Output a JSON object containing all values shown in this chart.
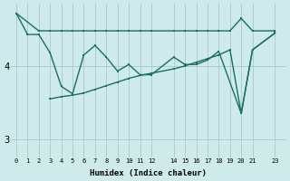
{
  "xlabel": "Humidex (Indice chaleur)",
  "background_color": "#ceeaea",
  "grid_color": "#aecece",
  "line_color": "#1a6e64",
  "x_ticks": [
    0,
    1,
    2,
    3,
    4,
    5,
    6,
    7,
    8,
    9,
    10,
    11,
    12,
    14,
    15,
    16,
    17,
    18,
    19,
    20,
    21,
    23
  ],
  "ylim": [
    2.75,
    4.85
  ],
  "yticks": [
    3,
    4
  ],
  "line1_x": [
    0,
    2,
    3,
    4,
    5,
    6,
    7,
    8,
    9,
    10,
    11,
    12,
    14,
    15,
    16,
    17,
    18,
    19,
    20,
    21,
    23
  ],
  "line1_y": [
    4.72,
    4.48,
    4.48,
    4.48,
    4.48,
    4.48,
    4.48,
    4.48,
    4.48,
    4.48,
    4.48,
    4.48,
    4.48,
    4.48,
    4.48,
    4.48,
    4.48,
    4.48,
    4.65,
    4.48,
    4.48
  ],
  "line2_x": [
    0,
    1,
    2,
    3,
    4,
    5,
    6,
    7,
    8,
    9,
    10,
    11,
    12,
    14,
    15,
    16,
    17,
    18,
    20,
    21,
    23
  ],
  "line2_y": [
    4.72,
    4.43,
    4.43,
    4.18,
    3.72,
    3.62,
    4.15,
    4.28,
    4.12,
    3.93,
    4.02,
    3.88,
    3.88,
    4.12,
    4.02,
    4.02,
    4.08,
    4.2,
    3.35,
    4.22,
    4.45
  ],
  "line3_x": [
    3,
    4,
    5,
    6,
    7,
    8,
    9,
    10,
    11,
    12,
    14,
    15,
    16,
    17,
    18,
    19,
    20,
    21,
    23
  ],
  "line3_y": [
    3.55,
    3.58,
    3.6,
    3.63,
    3.68,
    3.73,
    3.78,
    3.83,
    3.87,
    3.9,
    3.96,
    4.0,
    4.05,
    4.1,
    4.15,
    4.22,
    3.35,
    4.22,
    4.45
  ]
}
